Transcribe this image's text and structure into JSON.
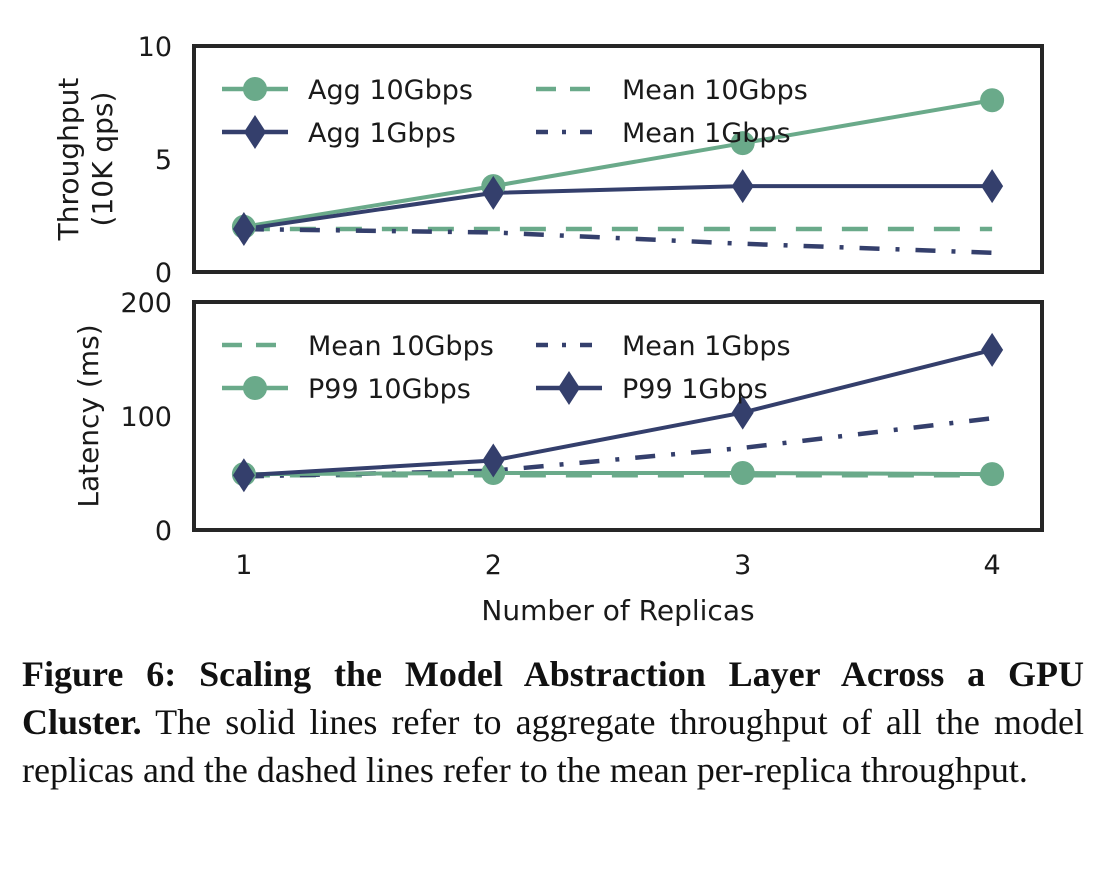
{
  "chart_data": [
    {
      "type": "line",
      "panel": "top",
      "ylabel": "Throughput\n(10K qps)",
      "ylim": [
        0,
        10
      ],
      "yticks": [
        "0",
        "5",
        "10"
      ],
      "x": [
        1,
        2,
        3,
        4
      ],
      "xlim": [
        0.8,
        4.2
      ],
      "legend": "upper-left, two columns",
      "series": [
        {
          "name": "Agg 10Gbps",
          "style": "solid",
          "marker": "circle",
          "color": "#6aaa8a",
          "values": [
            2.0,
            3.8,
            5.7,
            7.6
          ]
        },
        {
          "name": "Mean 10Gbps",
          "style": "dashed",
          "marker": "none",
          "color": "#6aaa8a",
          "values": [
            1.9,
            1.9,
            1.9,
            1.9
          ]
        },
        {
          "name": "Agg 1Gbps",
          "style": "solid",
          "marker": "diamond",
          "color": "#343f6c",
          "values": [
            1.9,
            3.5,
            3.8,
            3.8
          ]
        },
        {
          "name": "Mean 1Gbps",
          "style": "dashdot",
          "marker": "none",
          "color": "#343f6c",
          "values": [
            1.9,
            1.75,
            1.25,
            0.85
          ]
        }
      ]
    },
    {
      "type": "line",
      "panel": "bottom",
      "ylabel": "Latency (ms)",
      "xlabel": "Number of Replicas",
      "ylim": [
        0,
        200
      ],
      "yticks": [
        "0",
        "100",
        "200"
      ],
      "x": [
        1,
        2,
        3,
        4
      ],
      "xticks": [
        "1",
        "2",
        "3",
        "4"
      ],
      "xlim": [
        0.8,
        4.2
      ],
      "legend": "upper-left, two columns",
      "series": [
        {
          "name": "Mean 10Gbps",
          "style": "dashed",
          "marker": "none",
          "color": "#6aaa8a",
          "values": [
            48,
            48,
            48,
            48
          ]
        },
        {
          "name": "Mean 1Gbps",
          "style": "dashdot",
          "marker": "none",
          "color": "#343f6c",
          "values": [
            47,
            52,
            72,
            98
          ]
        },
        {
          "name": "P99 10Gbps",
          "style": "solid",
          "marker": "circle",
          "color": "#6aaa8a",
          "values": [
            49,
            50,
            50,
            49
          ]
        },
        {
          "name": "P99 1Gbps",
          "style": "solid",
          "marker": "diamond",
          "color": "#343f6c",
          "values": [
            48,
            61,
            103,
            158
          ]
        }
      ]
    }
  ],
  "caption": {
    "bold": "Figure 6: Scaling the Model Abstraction Layer Across a GPU Cluster.",
    "text": " The solid lines refer to aggregate throughput of all the model replicas and the dashed lines refer to the mean per-replica throughput."
  }
}
